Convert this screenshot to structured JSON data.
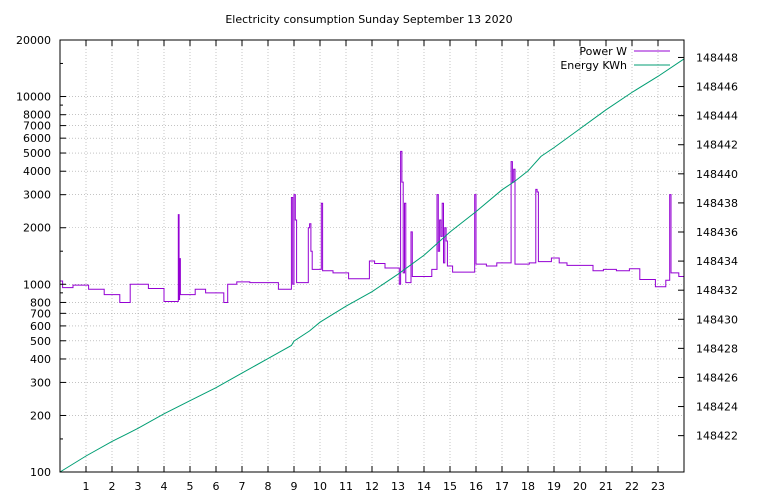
{
  "chart_data": {
    "type": "line",
    "title": "Electricity consumption Sunday September 13 2020",
    "xlabel": "",
    "ylabel": "",
    "xlim": [
      0,
      24
    ],
    "x_ticks": [
      "1",
      "2",
      "3",
      "4",
      "5",
      "6",
      "7",
      "8",
      "9",
      "10",
      "11",
      "12",
      "13",
      "14",
      "15",
      "16",
      "17",
      "18",
      "19",
      "20",
      "21",
      "22",
      "23"
    ],
    "y_left": {
      "scale": "log",
      "lim": [
        100,
        20000
      ],
      "ticks": [
        "100",
        "200",
        "300",
        "400",
        "500",
        "600",
        "700",
        "800",
        "1000",
        "2000",
        "3000",
        "4000",
        "5000",
        "6000",
        "7000",
        "8000",
        "10000",
        "20000"
      ]
    },
    "y_right": {
      "scale": "linear",
      "lim": [
        148419.5,
        148449.2
      ],
      "ticks": [
        "148422",
        "148424",
        "148426",
        "148428",
        "148430",
        "148432",
        "148434",
        "148436",
        "148438",
        "148440",
        "148442",
        "148444",
        "148446",
        "148448"
      ]
    },
    "grid": true,
    "legend_position": "top-right",
    "series": [
      {
        "name": "Power W",
        "axis": "left",
        "color": "#9400d3",
        "style": "steps",
        "points": [
          [
            0.0,
            1040
          ],
          [
            0.1,
            960
          ],
          [
            0.5,
            990
          ],
          [
            1.1,
            940
          ],
          [
            1.7,
            880
          ],
          [
            2.3,
            800
          ],
          [
            2.7,
            1000
          ],
          [
            3.4,
            950
          ],
          [
            4.0,
            810
          ],
          [
            4.55,
            2350
          ],
          [
            4.58,
            830
          ],
          [
            4.6,
            1370
          ],
          [
            4.63,
            880
          ],
          [
            5.2,
            940
          ],
          [
            5.6,
            900
          ],
          [
            6.3,
            800
          ],
          [
            6.45,
            1000
          ],
          [
            6.8,
            1030
          ],
          [
            7.3,
            1020
          ],
          [
            8.4,
            940
          ],
          [
            8.9,
            2900
          ],
          [
            8.95,
            1000
          ],
          [
            9.0,
            3000
          ],
          [
            9.05,
            2200
          ],
          [
            9.1,
            1020
          ],
          [
            9.55,
            2000
          ],
          [
            9.6,
            2100
          ],
          [
            9.65,
            1500
          ],
          [
            9.7,
            1200
          ],
          [
            10.05,
            2700
          ],
          [
            10.1,
            1180
          ],
          [
            10.5,
            1150
          ],
          [
            11.1,
            1070
          ],
          [
            11.9,
            1330
          ],
          [
            12.1,
            1290
          ],
          [
            12.5,
            1220
          ],
          [
            13.05,
            1000
          ],
          [
            13.1,
            5100
          ],
          [
            13.15,
            3500
          ],
          [
            13.2,
            1150
          ],
          [
            13.25,
            2700
          ],
          [
            13.3,
            1020
          ],
          [
            13.5,
            1900
          ],
          [
            13.55,
            1100
          ],
          [
            14.3,
            1200
          ],
          [
            14.5,
            3000
          ],
          [
            14.55,
            1500
          ],
          [
            14.6,
            2200
          ],
          [
            14.65,
            1800
          ],
          [
            14.7,
            2700
          ],
          [
            14.75,
            1300
          ],
          [
            14.8,
            2000
          ],
          [
            14.85,
            1700
          ],
          [
            14.9,
            1250
          ],
          [
            15.1,
            1160
          ],
          [
            15.95,
            3000
          ],
          [
            16.0,
            1280
          ],
          [
            16.4,
            1250
          ],
          [
            16.8,
            1300
          ],
          [
            17.35,
            4500
          ],
          [
            17.4,
            3500
          ],
          [
            17.45,
            4100
          ],
          [
            17.5,
            1280
          ],
          [
            18.05,
            1300
          ],
          [
            18.3,
            3200
          ],
          [
            18.35,
            3100
          ],
          [
            18.4,
            1320
          ],
          [
            18.9,
            1380
          ],
          [
            19.2,
            1300
          ],
          [
            19.5,
            1260
          ],
          [
            20.5,
            1180
          ],
          [
            20.9,
            1200
          ],
          [
            21.4,
            1180
          ],
          [
            21.9,
            1210
          ],
          [
            22.3,
            1060
          ],
          [
            22.9,
            970
          ],
          [
            23.3,
            1050
          ],
          [
            23.45,
            3000
          ],
          [
            23.5,
            1150
          ],
          [
            23.8,
            1100
          ],
          [
            24.0,
            1100
          ]
        ]
      },
      {
        "name": "Energy KWh",
        "axis": "right",
        "color": "#009e73",
        "style": "line",
        "points": [
          [
            0.0,
            148419.5
          ],
          [
            1.0,
            148420.6
          ],
          [
            2.0,
            148421.6
          ],
          [
            3.0,
            148422.5
          ],
          [
            4.0,
            148423.5
          ],
          [
            5.0,
            148424.4
          ],
          [
            6.0,
            148425.3
          ],
          [
            7.0,
            148426.3
          ],
          [
            8.0,
            148427.3
          ],
          [
            8.9,
            148428.2
          ],
          [
            9.0,
            148428.5
          ],
          [
            9.6,
            148429.2
          ],
          [
            10.0,
            148429.8
          ],
          [
            11.0,
            148430.9
          ],
          [
            12.0,
            148431.9
          ],
          [
            13.0,
            148433.1
          ],
          [
            14.0,
            148434.4
          ],
          [
            15.0,
            148436.0
          ],
          [
            16.0,
            148437.4
          ],
          [
            17.0,
            148438.9
          ],
          [
            17.5,
            148439.5
          ],
          [
            18.0,
            148440.2
          ],
          [
            18.5,
            148441.2
          ],
          [
            19.0,
            148441.8
          ],
          [
            20.0,
            148443.1
          ],
          [
            21.0,
            148444.4
          ],
          [
            22.0,
            148445.6
          ],
          [
            23.0,
            148446.7
          ],
          [
            24.0,
            148447.9
          ]
        ]
      }
    ]
  }
}
